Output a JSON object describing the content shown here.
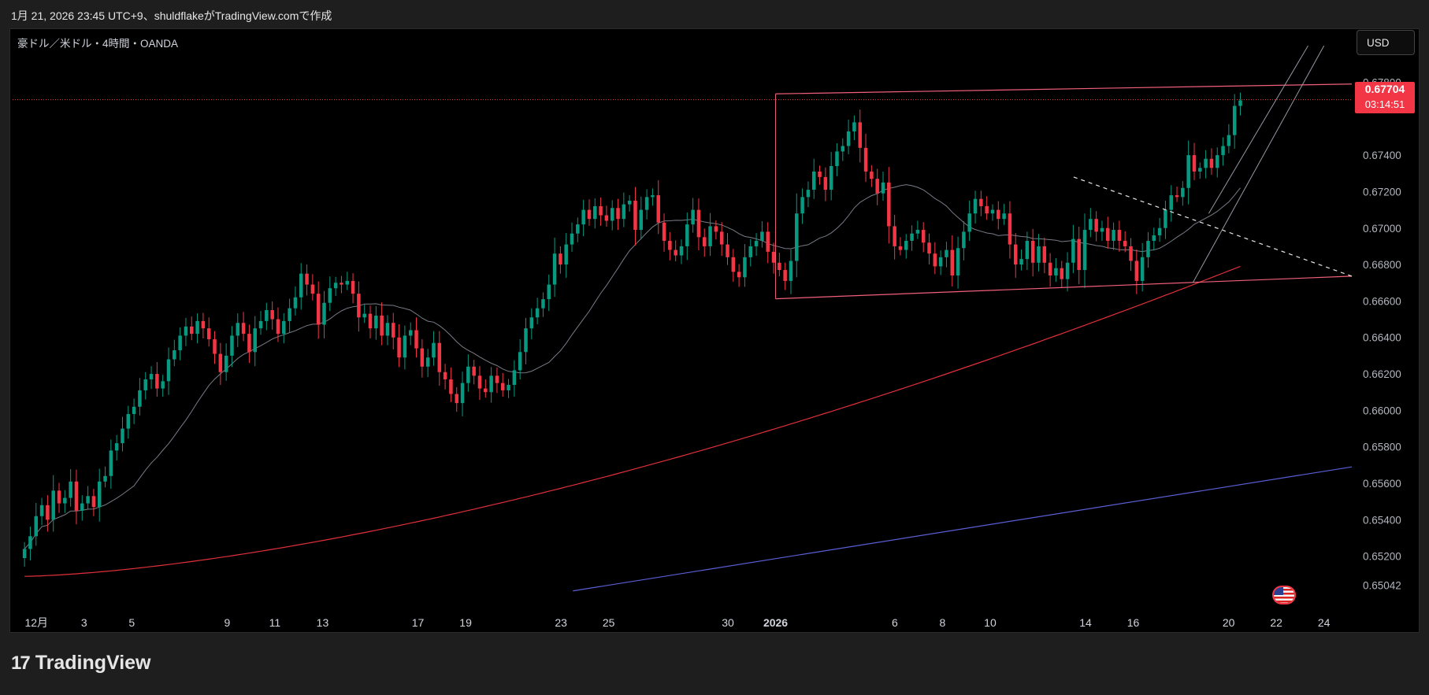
{
  "header": {
    "caption": "1月 21, 2026 23:45 UTC+9、shuldflakeがTradingView.comで作成"
  },
  "symbol": {
    "label": "豪ドル／米ドル・4時間・OANDA"
  },
  "toolbar": {
    "currency": "USD"
  },
  "last_price": {
    "value": "0.67704",
    "countdown": "03:14:51"
  },
  "footer": {
    "brand": "TradingView",
    "mark": "17"
  },
  "colors": {
    "up": "#089981",
    "down": "#f23645",
    "ma_fast": "#787b86",
    "ma_slow": "#e0303a",
    "trend": "#f0607a",
    "channel": "#9598a1",
    "long_trend": "#5b5fd6"
  },
  "icons": {
    "events": "us-flag-event-icon"
  },
  "chart_data": {
    "type": "candlestick",
    "title": "",
    "y_range": [
      0.6497,
      0.6794
    ],
    "y_ticks": [
      0.678,
      0.674,
      0.672,
      0.67,
      0.668,
      0.666,
      0.664,
      0.662,
      0.66,
      0.658,
      0.656,
      0.654,
      0.652,
      0.65042
    ],
    "y_tick_labels": [
      "0.67800",
      "0.67400",
      "0.67200",
      "0.67000",
      "0.66800",
      "0.66600",
      "0.66400",
      "0.66200",
      "0.66000",
      "0.65800",
      "0.65600",
      "0.65400",
      "0.65200",
      "0.65042"
    ],
    "x_range": [
      "2025-11-30 00:00",
      "2026-01-25 04:00"
    ],
    "x_ticks": [
      {
        "t": "2025-12-01",
        "label": "12月",
        "bold": false
      },
      {
        "t": "2025-12-03",
        "label": "3",
        "bold": false
      },
      {
        "t": "2025-12-05",
        "label": "5",
        "bold": false
      },
      {
        "t": "2025-12-09",
        "label": "9",
        "bold": false
      },
      {
        "t": "2025-12-11",
        "label": "11",
        "bold": false
      },
      {
        "t": "2025-12-13",
        "label": "13",
        "bold": false
      },
      {
        "t": "2025-12-17",
        "label": "17",
        "bold": false
      },
      {
        "t": "2025-12-19",
        "label": "19",
        "bold": false
      },
      {
        "t": "2025-12-23",
        "label": "23",
        "bold": false
      },
      {
        "t": "2025-12-25",
        "label": "25",
        "bold": false
      },
      {
        "t": "2025-12-30",
        "label": "30",
        "bold": false
      },
      {
        "t": "2026-01-01",
        "label": "2026",
        "bold": true
      },
      {
        "t": "2026-01-06",
        "label": "6",
        "bold": false
      },
      {
        "t": "2026-01-08",
        "label": "8",
        "bold": false
      },
      {
        "t": "2026-01-10",
        "label": "10",
        "bold": false
      },
      {
        "t": "2026-01-14",
        "label": "14",
        "bold": false
      },
      {
        "t": "2026-01-16",
        "label": "16",
        "bold": false
      },
      {
        "t": "2026-01-20",
        "label": "20",
        "bold": false
      },
      {
        "t": "2026-01-22",
        "label": "22",
        "bold": false
      },
      {
        "t": "2026-01-24",
        "label": "24",
        "bold": false
      }
    ],
    "last_price": 0.67704,
    "closes": [
      0.6524,
      0.6531,
      0.6542,
      0.6548,
      0.654,
      0.6556,
      0.6549,
      0.6552,
      0.6561,
      0.6545,
      0.6549,
      0.6553,
      0.6547,
      0.6561,
      0.6564,
      0.6578,
      0.6582,
      0.659,
      0.6598,
      0.6602,
      0.6611,
      0.6617,
      0.662,
      0.6612,
      0.6616,
      0.6628,
      0.6633,
      0.6641,
      0.6646,
      0.6642,
      0.6649,
      0.6645,
      0.6639,
      0.6631,
      0.6621,
      0.663,
      0.6641,
      0.6648,
      0.6642,
      0.6632,
      0.6645,
      0.6649,
      0.6655,
      0.665,
      0.6642,
      0.6649,
      0.6656,
      0.6662,
      0.6675,
      0.6669,
      0.6664,
      0.6647,
      0.6659,
      0.6667,
      0.667,
      0.6669,
      0.6671,
      0.6664,
      0.6651,
      0.6653,
      0.6645,
      0.6652,
      0.6641,
      0.6648,
      0.664,
      0.6629,
      0.6641,
      0.6644,
      0.6634,
      0.6624,
      0.6629,
      0.6637,
      0.6621,
      0.6617,
      0.6609,
      0.6604,
      0.6615,
      0.6624,
      0.6619,
      0.6612,
      0.661,
      0.6619,
      0.6615,
      0.6611,
      0.6614,
      0.6622,
      0.6632,
      0.6645,
      0.6651,
      0.6656,
      0.6661,
      0.6669,
      0.6686,
      0.668,
      0.6691,
      0.6697,
      0.6702,
      0.671,
      0.6705,
      0.6712,
      0.6707,
      0.6704,
      0.6711,
      0.6705,
      0.6713,
      0.6715,
      0.6699,
      0.671,
      0.6717,
      0.6718,
      0.6703,
      0.6693,
      0.6688,
      0.6685,
      0.669,
      0.6702,
      0.671,
      0.6695,
      0.669,
      0.6701,
      0.6698,
      0.6691,
      0.6684,
      0.6676,
      0.6673,
      0.6684,
      0.669,
      0.6693,
      0.6698,
      0.6687,
      0.6681,
      0.6677,
      0.6671,
      0.6682,
      0.6708,
      0.6717,
      0.6721,
      0.6731,
      0.6728,
      0.6721,
      0.6734,
      0.6742,
      0.6745,
      0.6753,
      0.6758,
      0.6744,
      0.6731,
      0.6727,
      0.6719,
      0.6725,
      0.6701,
      0.669,
      0.6688,
      0.6693,
      0.6697,
      0.6699,
      0.6692,
      0.6686,
      0.6679,
      0.6684,
      0.6688,
      0.6674,
      0.6689,
      0.6698,
      0.6708,
      0.6716,
      0.6712,
      0.6708,
      0.671,
      0.6705,
      0.6708,
      0.6691,
      0.668,
      0.6683,
      0.6693,
      0.6681,
      0.669,
      0.6681,
      0.6674,
      0.6678,
      0.6672,
      0.6681,
      0.6694,
      0.6677,
      0.6699,
      0.6705,
      0.6698,
      0.67,
      0.6693,
      0.6699,
      0.6693,
      0.669,
      0.6682,
      0.6671,
      0.6684,
      0.6693,
      0.6696,
      0.67,
      0.671,
      0.6718,
      0.6717,
      0.6722,
      0.674,
      0.6731,
      0.6733,
      0.6738,
      0.6733,
      0.674,
      0.6745,
      0.6751,
      0.6767,
      0.677
    ]
  }
}
